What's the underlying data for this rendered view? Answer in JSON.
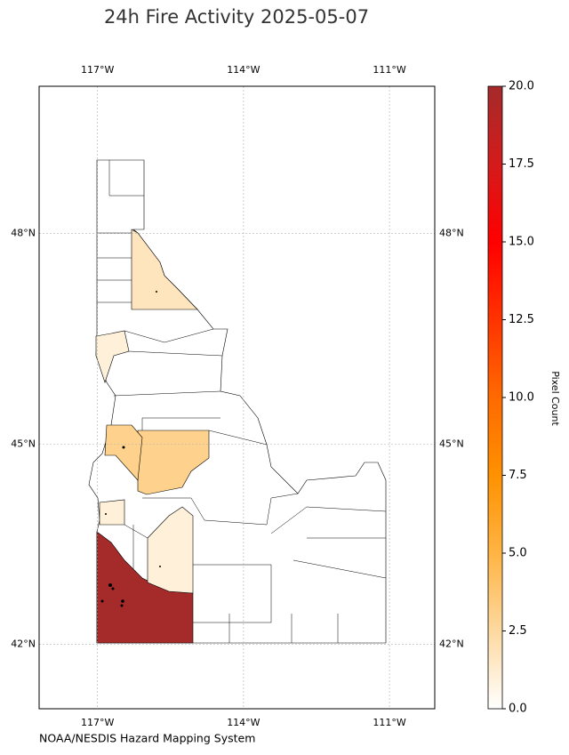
{
  "chart_data": {
    "type": "choropleth",
    "title": "24h Fire Activity 2025-05-07",
    "credit": "NOAA/NESDIS Hazard Mapping System",
    "colorbar_label": "Pixel Count",
    "xlim": [
      -118.2,
      -110.07
    ],
    "ylim": [
      41,
      50
    ],
    "xticks": [
      {
        "value": -117,
        "label": "117°W"
      },
      {
        "value": -114,
        "label": "114°W"
      },
      {
        "value": -111,
        "label": "111°W"
      }
    ],
    "yticks": [
      {
        "value": 42,
        "label": "42°N"
      },
      {
        "value": 45,
        "label": "45°N"
      },
      {
        "value": 48,
        "label": "48°N"
      }
    ],
    "grid": true,
    "clim": [
      0,
      20
    ],
    "cticks": [
      {
        "value": 0,
        "label": "0.0"
      },
      {
        "value": 2.5,
        "label": "2.5"
      },
      {
        "value": 5,
        "label": "5.0"
      },
      {
        "value": 7.5,
        "label": "7.5"
      },
      {
        "value": 10,
        "label": "10.0"
      },
      {
        "value": 12.5,
        "label": "12.5"
      },
      {
        "value": 15,
        "label": "15.0"
      },
      {
        "value": 17.5,
        "label": "17.5"
      },
      {
        "value": 20,
        "label": "20.0"
      }
    ],
    "colormap": [
      "#ffffff",
      "#fed9a0",
      "#ffb443",
      "#ff9100",
      "#ff6a00",
      "#ff3300",
      "#ff0000",
      "#d41b1b",
      "#a52a2a"
    ],
    "county_values": [
      20,
      1,
      3,
      3,
      1,
      1,
      1.7
    ]
  }
}
